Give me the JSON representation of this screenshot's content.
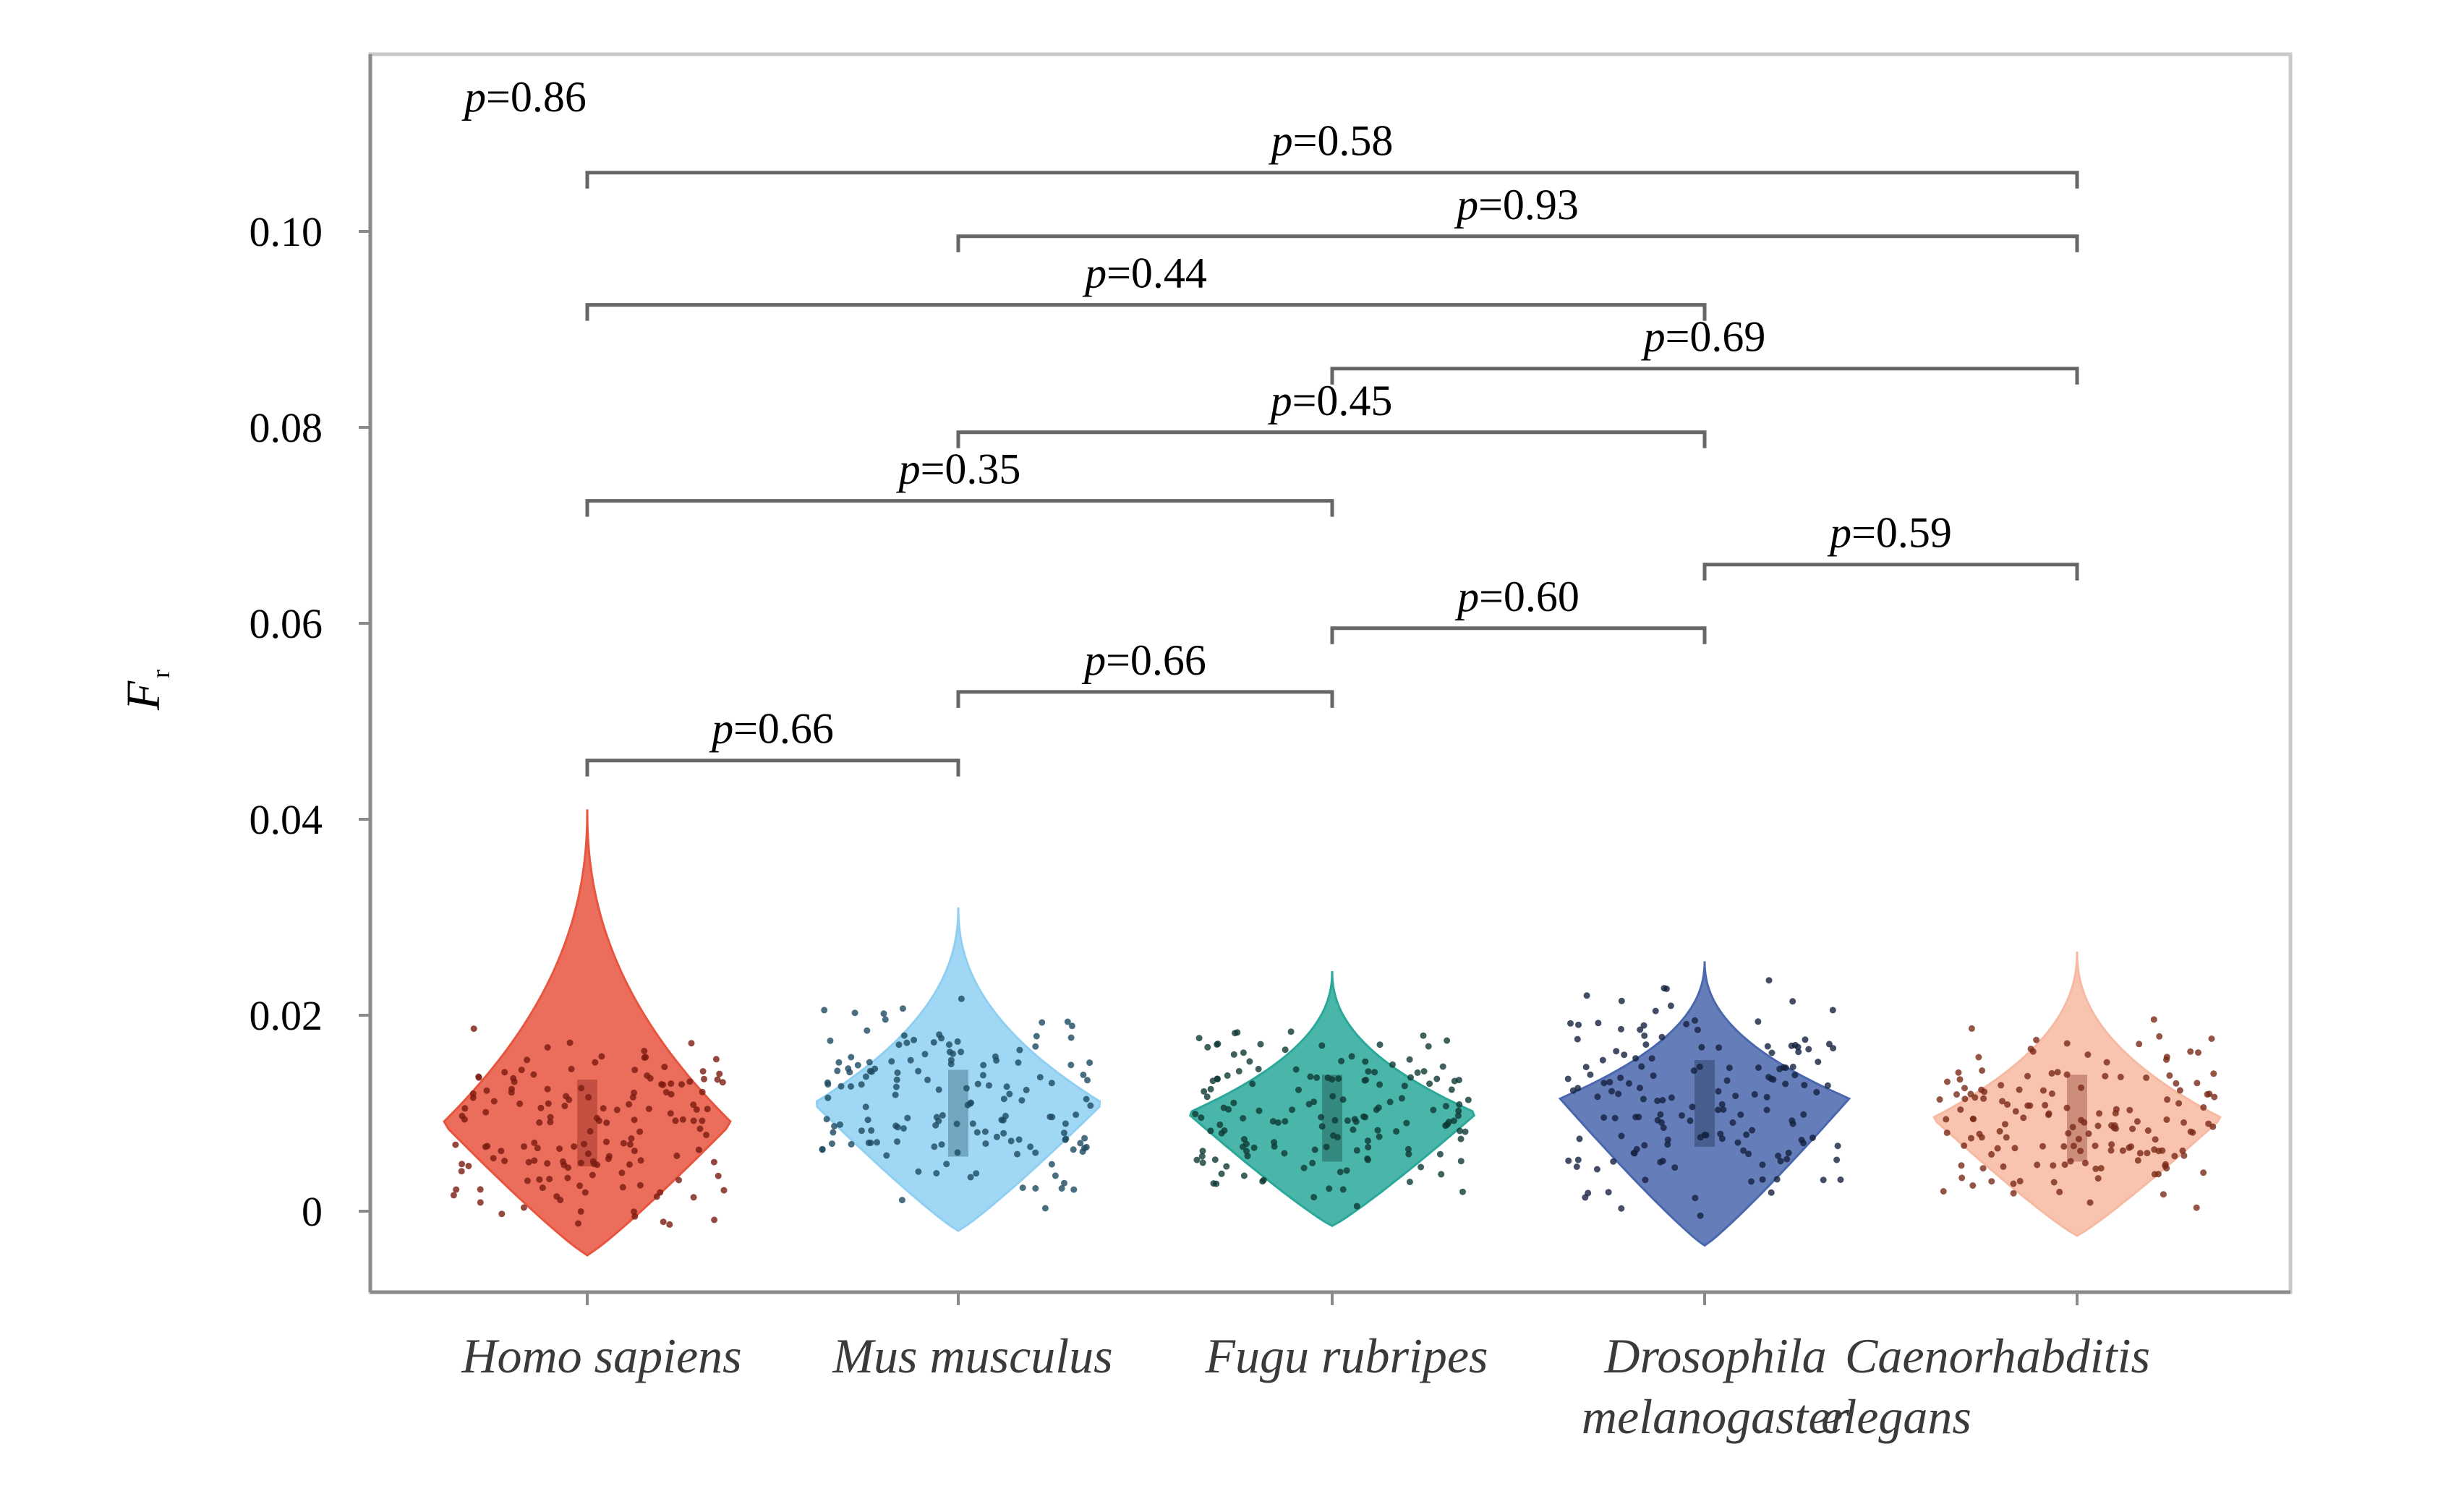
{
  "chart_data": {
    "type": "violin",
    "ylabel": "F",
    "ylabel_subscript": "r",
    "ylim": [
      -0.009,
      0.118
    ],
    "yticks": [
      {
        "value": 0,
        "label": "0"
      },
      {
        "value": 0.02,
        "label": "0.02"
      },
      {
        "value": 0.04,
        "label": "0.04"
      },
      {
        "value": 0.06,
        "label": "0.06"
      },
      {
        "value": 0.08,
        "label": "0.08"
      },
      {
        "value": 0.1,
        "label": "0.10"
      }
    ],
    "categories": [
      {
        "name": "Homo sapiens",
        "lines": [
          "Homo sapiens"
        ],
        "color": "#e8553f",
        "dot_color": "#7a1a10",
        "median": 0.009,
        "min": -0.0045,
        "max": 0.041,
        "peak": 0.009
      },
      {
        "name": "Mus musculus",
        "lines": [
          "Mus musculus"
        ],
        "color": "#8fd0f2",
        "dot_color": "#1d4a62",
        "median": 0.01,
        "min": -0.002,
        "max": 0.031,
        "peak": 0.011
      },
      {
        "name": "Fugu rubripes",
        "lines": [
          "Fugu rubripes"
        ],
        "color": "#2aa89a",
        "dot_color": "#0e3a34",
        "median": 0.0095,
        "min": -0.0015,
        "max": 0.0245,
        "peak": 0.01
      },
      {
        "name": "Drosophila melanogaster",
        "lines": [
          "Drosophila",
          "melanogaster"
        ],
        "color": "#4a67ad",
        "dot_color": "#14213f",
        "median": 0.011,
        "min": -0.0035,
        "max": 0.0255,
        "peak": 0.0115
      },
      {
        "name": "Caenorhabditis elegans",
        "lines": [
          "Caenorhabditis",
          "elegans"
        ],
        "color": "#f7b9a1",
        "dot_color": "#7a2a18",
        "median": 0.0095,
        "min": -0.0025,
        "max": 0.0265,
        "peak": 0.0095
      }
    ],
    "comparisons": [
      {
        "from": 0,
        "to": 1,
        "y": 0.046,
        "p_prefix": "p",
        "p_value": "=0.66"
      },
      {
        "from": 1,
        "to": 2,
        "y": 0.053,
        "p_prefix": "p",
        "p_value": "=0.66"
      },
      {
        "from": 2,
        "to": 3,
        "y": 0.0595,
        "p_prefix": "p",
        "p_value": "=0.60"
      },
      {
        "from": 3,
        "to": 4,
        "y": 0.066,
        "p_prefix": "p",
        "p_value": "=0.59"
      },
      {
        "from": 0,
        "to": 2,
        "y": 0.0725,
        "p_prefix": "p",
        "p_value": "=0.35"
      },
      {
        "from": 1,
        "to": 3,
        "y": 0.0795,
        "p_prefix": "p",
        "p_value": "=0.45"
      },
      {
        "from": 2,
        "to": 4,
        "y": 0.086,
        "p_prefix": "p",
        "p_value": "=0.69"
      },
      {
        "from": 0,
        "to": 3,
        "y": 0.0925,
        "p_prefix": "p",
        "p_value": "=0.44"
      },
      {
        "from": 1,
        "to": 4,
        "y": 0.0995,
        "p_prefix": "p",
        "p_value": "=0.93"
      },
      {
        "from": 0,
        "to": 4,
        "y": 0.106,
        "p_prefix": "p",
        "p_value": "=0.58"
      }
    ],
    "corner_annotation": {
      "p_prefix": "p",
      "p_value": "=0.86"
    },
    "grid": false,
    "legend": "none"
  }
}
